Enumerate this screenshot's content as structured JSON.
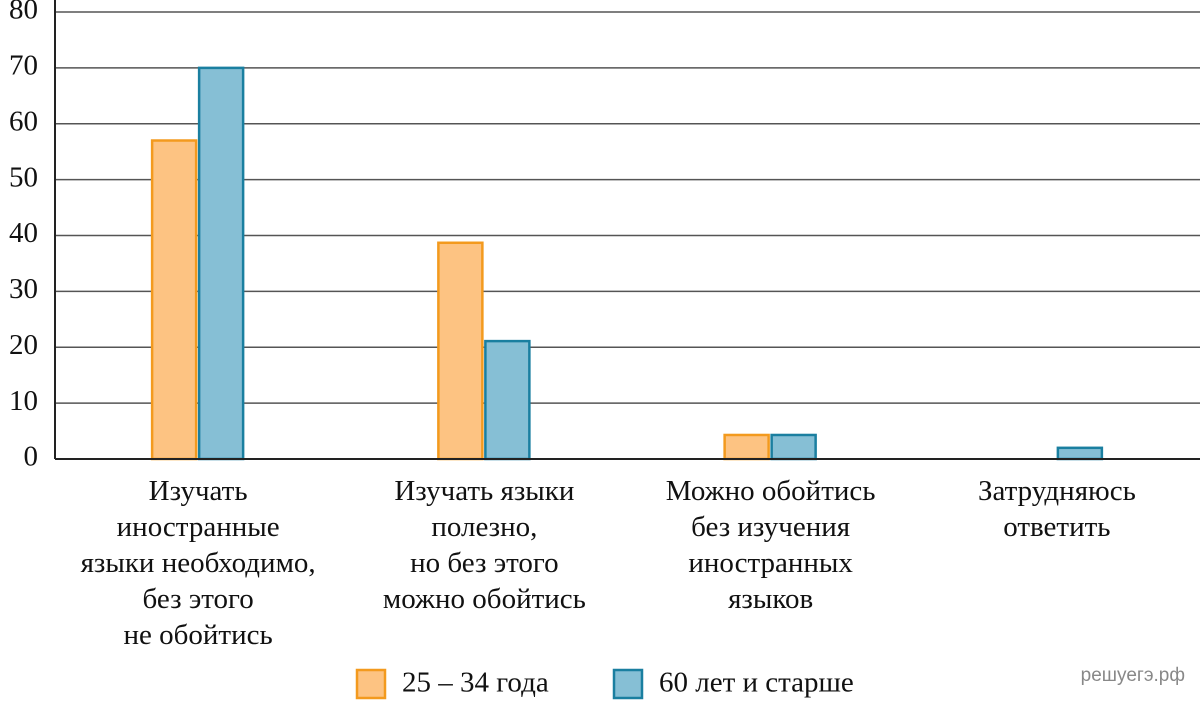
{
  "chart_data": {
    "type": "bar",
    "categories": [
      "Изучать\nиностранные\nязыки необходимо,\nбез этого\nне обойтись",
      "Изучать языки\nполезно,\nно без этого\nможно обойтись",
      "Можно обойтись\nбез изучения\nиностранных\nязыков",
      "Затрудняюсь\nответить"
    ],
    "series": [
      {
        "name": "25 – 34 года",
        "color": "#fdc382",
        "stroke": "#f39a1e",
        "values": [
          57,
          38.7,
          4.3,
          null
        ]
      },
      {
        "name": "60 лет и старше",
        "color": "#86bfd5",
        "stroke": "#1a7fa0",
        "values": [
          70,
          21.1,
          4.3,
          2
        ]
      }
    ],
    "ylim": [
      0,
      80
    ],
    "yticks": [
      0,
      10,
      20,
      30,
      40,
      50,
      60,
      70,
      80
    ],
    "grid": true,
    "watermark": "решуегэ.рф"
  }
}
